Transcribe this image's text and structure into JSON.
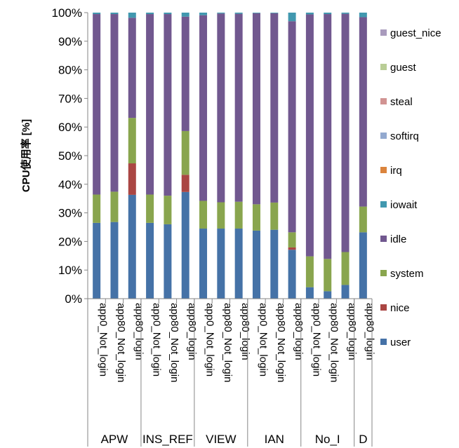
{
  "chart_data": {
    "type": "bar",
    "stacked": true,
    "percent_stacked": true,
    "title": "",
    "xlabel": "",
    "ylabel": "CPU使用率 [%]",
    "ylim": [
      0,
      100
    ],
    "y_ticks": [
      "0%",
      "10%",
      "20%",
      "30%",
      "40%",
      "50%",
      "60%",
      "70%",
      "80%",
      "90%",
      "100%"
    ],
    "grid": false,
    "legend_position": "right",
    "categories": [
      "app0_Not_login",
      "app80_Not_login",
      "app80_login",
      "app0_Not_login",
      "app80_Not_login",
      "app80_login",
      "app0_Not_login",
      "app80_Not_login",
      "app80_login",
      "app0_Not_login",
      "app80_Not_login",
      "app80_login",
      "app0_Not_login",
      "app80_Not_login",
      "app80_login",
      "app80_login"
    ],
    "groups": [
      {
        "name": "APW",
        "count": 3
      },
      {
        "name": "INS_REF",
        "count": 3
      },
      {
        "name": "VIEW",
        "count": 3
      },
      {
        "name": "IAN",
        "count": 3
      },
      {
        "name": "No_I",
        "count": 3
      },
      {
        "name": "D",
        "count": 1
      }
    ],
    "series": [
      {
        "name": "user",
        "color": "#4572A7",
        "values": [
          26.5,
          26.8,
          36.3,
          26.5,
          26.0,
          37.3,
          24.5,
          24.5,
          24.5,
          23.8,
          24.1,
          17.1,
          4.0,
          2.6,
          4.8,
          23.2
        ]
      },
      {
        "name": "nice",
        "color": "#AA4643",
        "values": [
          0.0,
          0.0,
          11.0,
          0.0,
          0.0,
          6.0,
          0.0,
          0.0,
          0.0,
          0.0,
          0.0,
          0.8,
          0.0,
          0.0,
          0.0,
          0.0
        ]
      },
      {
        "name": "system",
        "color": "#89A54E",
        "values": [
          9.9,
          10.6,
          15.9,
          9.9,
          10.0,
          15.3,
          9.7,
          9.2,
          9.4,
          9.2,
          9.5,
          5.3,
          10.8,
          11.3,
          11.5,
          9.0
        ]
      },
      {
        "name": "idle",
        "color": "#71588F",
        "values": [
          63.1,
          62.1,
          35.0,
          63.1,
          63.5,
          40.0,
          64.9,
          66.0,
          65.7,
          66.8,
          66.2,
          73.8,
          84.6,
          85.6,
          83.3,
          66.2
        ]
      },
      {
        "name": "iowait",
        "color": "#4198AF",
        "values": [
          0.5,
          0.5,
          1.8,
          0.5,
          0.5,
          1.4,
          0.9,
          0.3,
          0.4,
          0.2,
          0.2,
          3.0,
          0.6,
          0.5,
          0.4,
          1.6
        ]
      },
      {
        "name": "irq",
        "color": "#DB843D",
        "values": [
          0,
          0,
          0,
          0,
          0,
          0,
          0,
          0,
          0,
          0,
          0,
          0,
          0,
          0,
          0,
          0
        ]
      },
      {
        "name": "softirq",
        "color": "#93A9CF",
        "values": [
          0,
          0,
          0,
          0,
          0,
          0,
          0,
          0,
          0,
          0,
          0,
          0,
          0,
          0,
          0,
          0
        ]
      },
      {
        "name": "steal",
        "color": "#D19392",
        "values": [
          0,
          0,
          0,
          0,
          0,
          0,
          0,
          0,
          0,
          0,
          0,
          0,
          0,
          0,
          0,
          0
        ]
      },
      {
        "name": "guest",
        "color": "#B9CD96",
        "values": [
          0,
          0,
          0,
          0,
          0,
          0,
          0,
          0,
          0,
          0,
          0,
          0,
          0,
          0,
          0,
          0
        ]
      },
      {
        "name": "guest_nice",
        "color": "#A99BBD",
        "values": [
          0,
          0,
          0,
          0,
          0,
          0,
          0,
          0,
          0,
          0,
          0,
          0,
          0,
          0,
          0,
          0
        ]
      }
    ],
    "legend_order": [
      "guest_nice",
      "guest",
      "steal",
      "softirq",
      "irq",
      "iowait",
      "idle",
      "system",
      "nice",
      "user"
    ]
  }
}
